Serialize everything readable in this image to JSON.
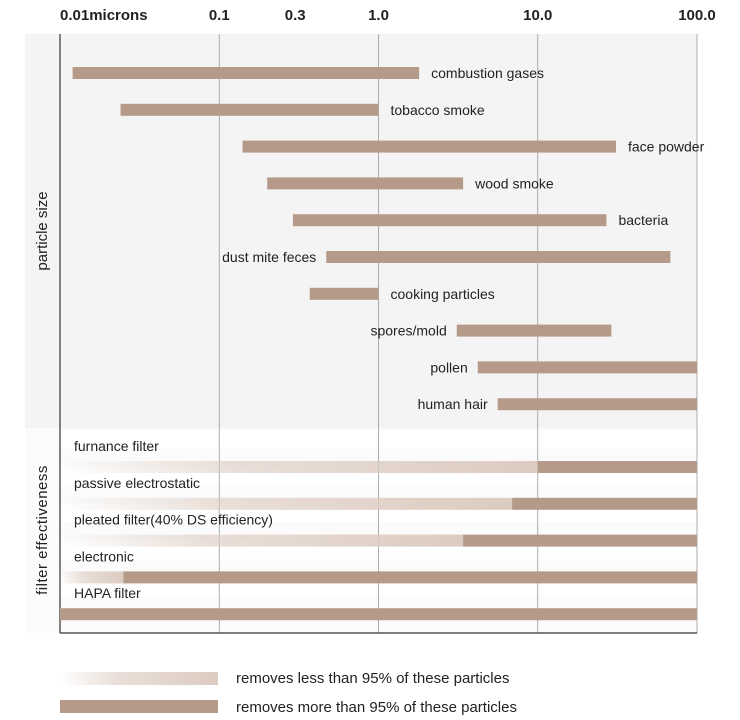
{
  "chart_data": {
    "type": "bar",
    "subtype": "horizontal-range-log",
    "x_scale": "log",
    "xlim": [
      0.01,
      100
    ],
    "x_ticks": [
      {
        "value": 0.01,
        "label": "0.01microns",
        "grid": true
      },
      {
        "value": 0.1,
        "label": "0.1",
        "grid": true
      },
      {
        "value": 0.3,
        "label": "0.3",
        "grid": false
      },
      {
        "value": 1,
        "label": "1.0",
        "grid": true
      },
      {
        "value": 10,
        "label": "10.0",
        "grid": true
      },
      {
        "value": 100,
        "label": "100.0",
        "grid": true
      }
    ],
    "sections": {
      "particle_size": "particle size",
      "filter_effectiveness": "filter effectiveness"
    },
    "particles": [
      {
        "name": "combustion gases",
        "min": 0.012,
        "max": 1.8,
        "label_side": "right"
      },
      {
        "name": "tobacco smoke",
        "min": 0.024,
        "max": 1.0,
        "label_side": "right"
      },
      {
        "name": "face powder",
        "min": 0.14,
        "max": 31,
        "label_side": "right"
      },
      {
        "name": "wood smoke",
        "min": 0.2,
        "max": 3.4,
        "label_side": "right"
      },
      {
        "name": "bacteria",
        "min": 0.29,
        "max": 27,
        "label_side": "right"
      },
      {
        "name": "dust mite feces",
        "min": 0.47,
        "max": 68,
        "label_side": "left"
      },
      {
        "name": "cooking particles",
        "min": 0.37,
        "max": 1.0,
        "label_side": "right"
      },
      {
        "name": "spores/mold",
        "min": 3.1,
        "max": 29,
        "label_side": "left"
      },
      {
        "name": "pollen",
        "min": 4.2,
        "max": 100,
        "label_side": "left"
      },
      {
        "name": "human hair",
        "min": 5.6,
        "max": 100,
        "label_side": "left"
      }
    ],
    "filters": [
      {
        "name": "furnance filter",
        "removes_over_95_from": 10
      },
      {
        "name": "passive electrostatic",
        "removes_over_95_from": 6.9
      },
      {
        "name": "pleated filter(40% DS efficiency)",
        "removes_over_95_from": 3.4
      },
      {
        "name": "electronic",
        "removes_over_95_from": 0.025
      },
      {
        "name": "HAPA filter",
        "removes_over_95_from": 0.01
      }
    ],
    "legend": [
      {
        "style": "gradient",
        "label": "removes less than 95% of these particles"
      },
      {
        "style": "solid",
        "label": "removes more than 95% of these particles"
      }
    ],
    "colors": {
      "bar": "#b59a89",
      "light": "#dccbc0",
      "panel": "#f4f4f4",
      "grid": "#999999"
    }
  }
}
